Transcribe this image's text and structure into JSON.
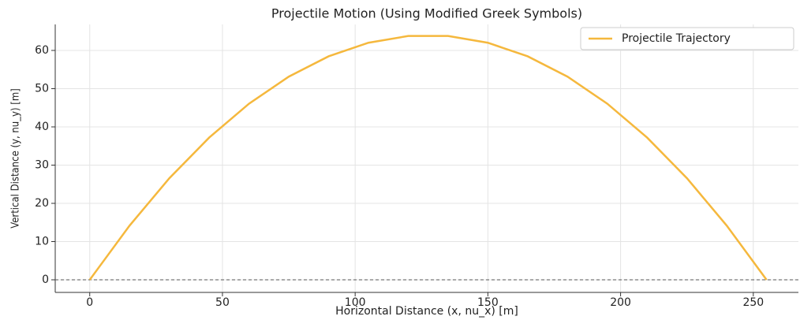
{
  "chart_data": {
    "type": "line",
    "title": "Projectile Motion (Using Modified Greek Symbols)",
    "x_label": "Horizontal Distance (x, nu_x) [m]",
    "y_label": "Vertical Distance (y, nu_y) [m]",
    "x": [
      0,
      15,
      30,
      45,
      60,
      75,
      90,
      105,
      120,
      135,
      150,
      165,
      180,
      195,
      210,
      225,
      240,
      255
    ],
    "series": [
      {
        "name": "Projectile Trajectory",
        "color": "#f5b83d",
        "values": [
          0,
          14.17,
          26.57,
          37.2,
          46.06,
          53.15,
          58.46,
          62.01,
          63.78,
          63.78,
          62.01,
          58.46,
          53.15,
          46.06,
          37.2,
          26.57,
          14.17,
          0
        ]
      }
    ],
    "axhline": 0,
    "xlim": [
      -13,
      267
    ],
    "ylim": [
      -3.3,
      66.8
    ],
    "xticks": [
      0,
      50,
      100,
      150,
      200,
      250
    ],
    "yticks": [
      0,
      10,
      20,
      30,
      40,
      50,
      60
    ],
    "grid": true,
    "legend": "upper right"
  }
}
